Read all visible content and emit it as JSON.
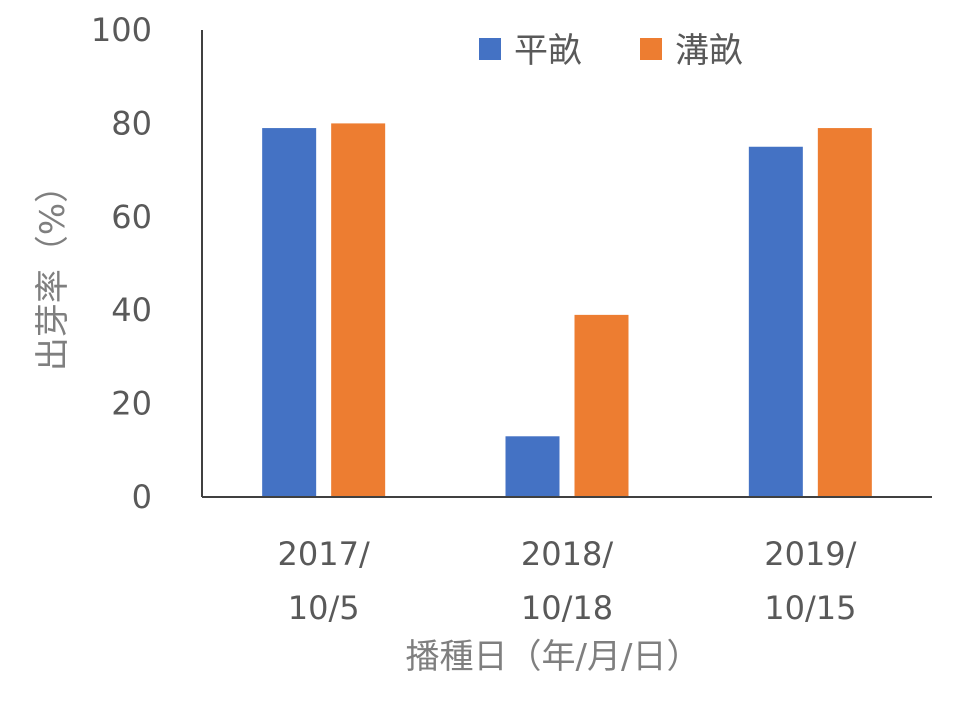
{
  "chart_data": {
    "type": "bar",
    "categories": [
      [
        "2017/",
        "10/5"
      ],
      [
        "2018/",
        "10/18"
      ],
      [
        "2019/",
        "10/15"
      ]
    ],
    "series": [
      {
        "name": "平畝",
        "values": [
          79,
          13,
          75
        ],
        "color": "#4472c4"
      },
      {
        "name": "溝畝",
        "values": [
          80,
          39,
          79
        ],
        "color": "#ed7d31"
      }
    ],
    "title": "",
    "xlabel": "播種日（年/月/日）",
    "ylabel": "出芽率（%）",
    "ylim": [
      0,
      100
    ],
    "yticks": [
      0,
      20,
      40,
      60,
      80,
      100
    ],
    "grid": false,
    "legend": "top"
  }
}
